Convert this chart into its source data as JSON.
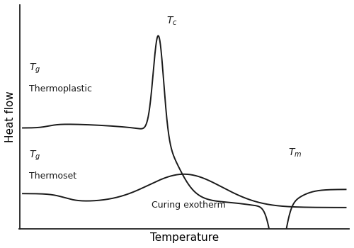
{
  "xlabel": "Temperature",
  "ylabel": "Heat flow",
  "background_color": "#ffffff",
  "line_color": "#1a1a1a",
  "line_width": 1.4,
  "fig_width": 5.0,
  "fig_height": 3.5,
  "dpi": 100,
  "thermoplastic_label": "Thermoplastic",
  "thermoset_label": "Thermoset",
  "curing_label": "Curing exotherm"
}
